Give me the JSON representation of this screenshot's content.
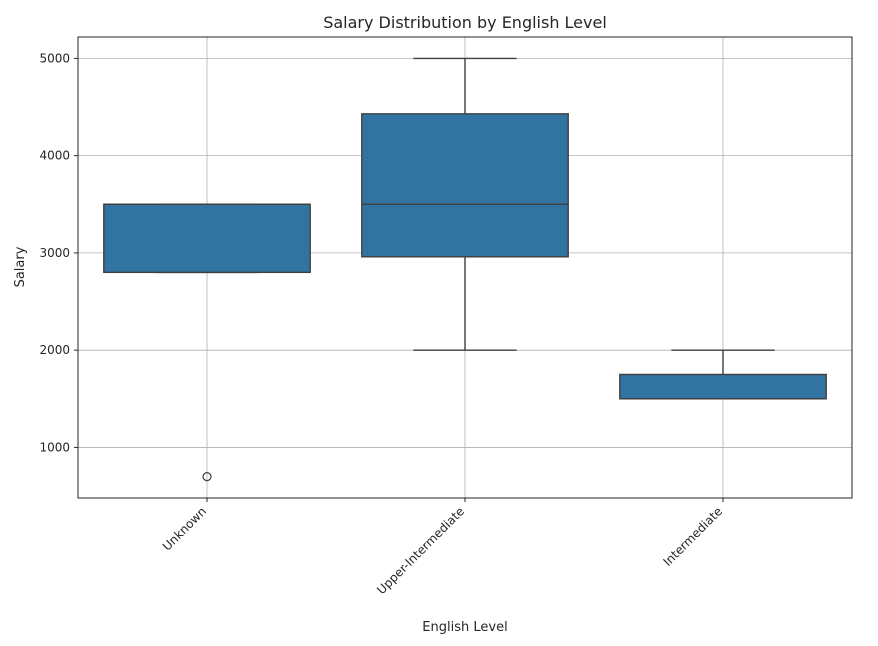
{
  "chart_data": {
    "type": "box",
    "title": "Salary Distribution by English Level",
    "xlabel": "English Level",
    "ylabel": "Salary",
    "ylim": [
      480,
      5220
    ],
    "yticks": [
      1000,
      2000,
      3000,
      4000,
      5000
    ],
    "grid": true,
    "box_color": "#3274a1",
    "categories": [
      "Unknown",
      "Upper-Intermediate",
      "Intermediate"
    ],
    "boxes": [
      {
        "category": "Unknown",
        "whisker_low": 2800,
        "q1": 2800,
        "median": 3500,
        "q3": 3500,
        "whisker_high": 3500,
        "outliers": [
          700
        ]
      },
      {
        "category": "Upper-Intermediate",
        "whisker_low": 2000,
        "q1": 2960,
        "median": 3500,
        "q3": 4430,
        "whisker_high": 5000,
        "outliers": []
      },
      {
        "category": "Intermediate",
        "whisker_low": 1500,
        "q1": 1500,
        "median": 1500,
        "q3": 1750,
        "whisker_high": 2000,
        "outliers": []
      }
    ]
  }
}
